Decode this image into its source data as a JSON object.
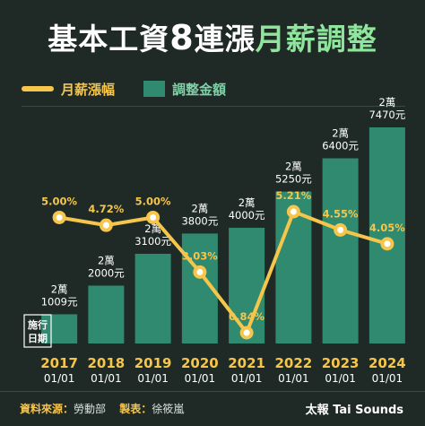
{
  "title": {
    "prefix": "基本工資",
    "number": "8",
    "middle": "連漲",
    "highlight": "月薪調整"
  },
  "legend": {
    "line_label": "月薪漲幅",
    "bar_label": "調整金額"
  },
  "colors": {
    "background": "#1f2a26",
    "bar": "#2f8a6f",
    "line": "#f6c54b",
    "accent_green": "#8ee59b"
  },
  "effective_label": [
    "施行",
    "日期"
  ],
  "chart_data": {
    "type": "bar",
    "categories": [
      "2017",
      "2018",
      "2019",
      "2020",
      "2021",
      "2022",
      "2023",
      "2024"
    ],
    "date_labels": [
      "01/01",
      "01/01",
      "01/01",
      "01/01",
      "01/01",
      "01/01",
      "01/01",
      "01/01"
    ],
    "series": [
      {
        "name": "調整金額",
        "type": "bar",
        "values": [
          21009,
          22000,
          23100,
          23800,
          24000,
          25250,
          26400,
          27470
        ],
        "labels_line1": [
          "2萬",
          "2萬",
          "2萬",
          "2萬",
          "2萬",
          "2萬",
          "2萬",
          "2萬"
        ],
        "labels_line2": [
          "1009元",
          "2000元",
          "3100元",
          "3800元",
          "4000元",
          "5250元",
          "6400元",
          "7470元"
        ]
      },
      {
        "name": "月薪漲幅",
        "type": "line",
        "values": [
          5.0,
          4.72,
          5.0,
          3.03,
          0.84,
          5.21,
          4.55,
          4.05
        ],
        "labels": [
          "5.00%",
          "4.72%",
          "5.00%",
          "3.03%",
          "0.84%",
          "5.21%",
          "4.55%",
          "4.05%"
        ]
      }
    ]
  },
  "footer": {
    "source_label": "資料來源：",
    "source_value": "勞動部",
    "maker_label": "製表：",
    "maker_value": "徐筱嵐",
    "brand": "太報 Tai Sounds"
  }
}
